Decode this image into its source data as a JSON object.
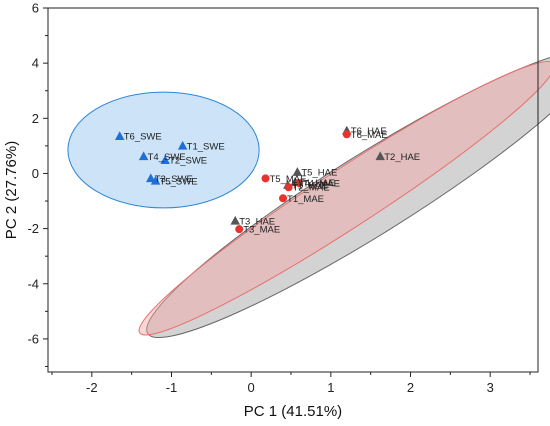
{
  "chart_data": {
    "type": "scatter",
    "xlabel": "PC 1 (41.51%)",
    "ylabel": "PC 2 (27.76%)",
    "xlim": [
      -2.55,
      3.6
    ],
    "ylim": [
      -7.2,
      6.0
    ],
    "xticks": [
      -2,
      -1,
      0,
      1,
      2,
      3
    ],
    "yticks": [
      6,
      4,
      2,
      0,
      -2,
      -4,
      -6
    ],
    "grid": false,
    "series": [
      {
        "group": "SWE",
        "marker": "triangle",
        "color": "#1f6fd6",
        "points": [
          {
            "label": "T6_SWE",
            "x": -1.65,
            "y": 1.35
          },
          {
            "label": "T1_SWE",
            "x": -0.86,
            "y": 1.0
          },
          {
            "label": "T4_SWE",
            "x": -1.35,
            "y": 0.62
          },
          {
            "label": "T2_SWE",
            "x": -1.08,
            "y": 0.48
          },
          {
            "label": "T3_SWE",
            "x": -1.26,
            "y": -0.18
          },
          {
            "label": "T5_SWE",
            "x": -1.2,
            "y": -0.27
          }
        ]
      },
      {
        "group": "HAE",
        "marker": "triangle",
        "color": "#555555",
        "points": [
          {
            "label": "T6_HAE",
            "x": 1.2,
            "y": 1.55
          },
          {
            "label": "T2_HAE",
            "x": 1.62,
            "y": 0.62
          },
          {
            "label": "T5_HAE",
            "x": 0.58,
            "y": 0.05
          },
          {
            "label": "T4_HAE",
            "x": 0.55,
            "y": -0.32
          },
          {
            "label": "T1_HAE",
            "x": 0.46,
            "y": -0.42
          },
          {
            "label": "T3_HAE",
            "x": -0.2,
            "y": -1.72
          }
        ]
      },
      {
        "group": "MAE",
        "marker": "circle",
        "color": "#e8322d",
        "points": [
          {
            "label": "T6_MAE",
            "x": 1.2,
            "y": 1.42
          },
          {
            "label": "T5_MAE",
            "x": 0.18,
            "y": -0.18
          },
          {
            "label": "T4_MAE",
            "x": 0.6,
            "y": -0.35
          },
          {
            "label": "T2_MAE",
            "x": 0.47,
            "y": -0.5
          },
          {
            "label": "T1_MAE",
            "x": 0.4,
            "y": -0.9
          },
          {
            "label": "T3_MAE",
            "x": -0.15,
            "y": -2.02
          }
        ]
      }
    ],
    "ellipses": [
      {
        "group": "HAE",
        "cx": 1.5,
        "cy": -0.75,
        "rx": 3.3,
        "ry": 1.45,
        "angle_deg": 32,
        "fill": "#9e9e9e",
        "stroke": "#666666"
      },
      {
        "group": "MAE",
        "cx": 1.2,
        "cy": -0.9,
        "rx": 3.1,
        "ry": 1.05,
        "angle_deg": 33,
        "fill": "#f5a3a3",
        "stroke": "#e8706d"
      },
      {
        "group": "SWE",
        "cx": -1.1,
        "cy": 0.85,
        "rx": 1.2,
        "ry": 2.1,
        "angle_deg": 0,
        "fill": "#8fc0ef",
        "stroke": "#2e86d6"
      }
    ]
  }
}
